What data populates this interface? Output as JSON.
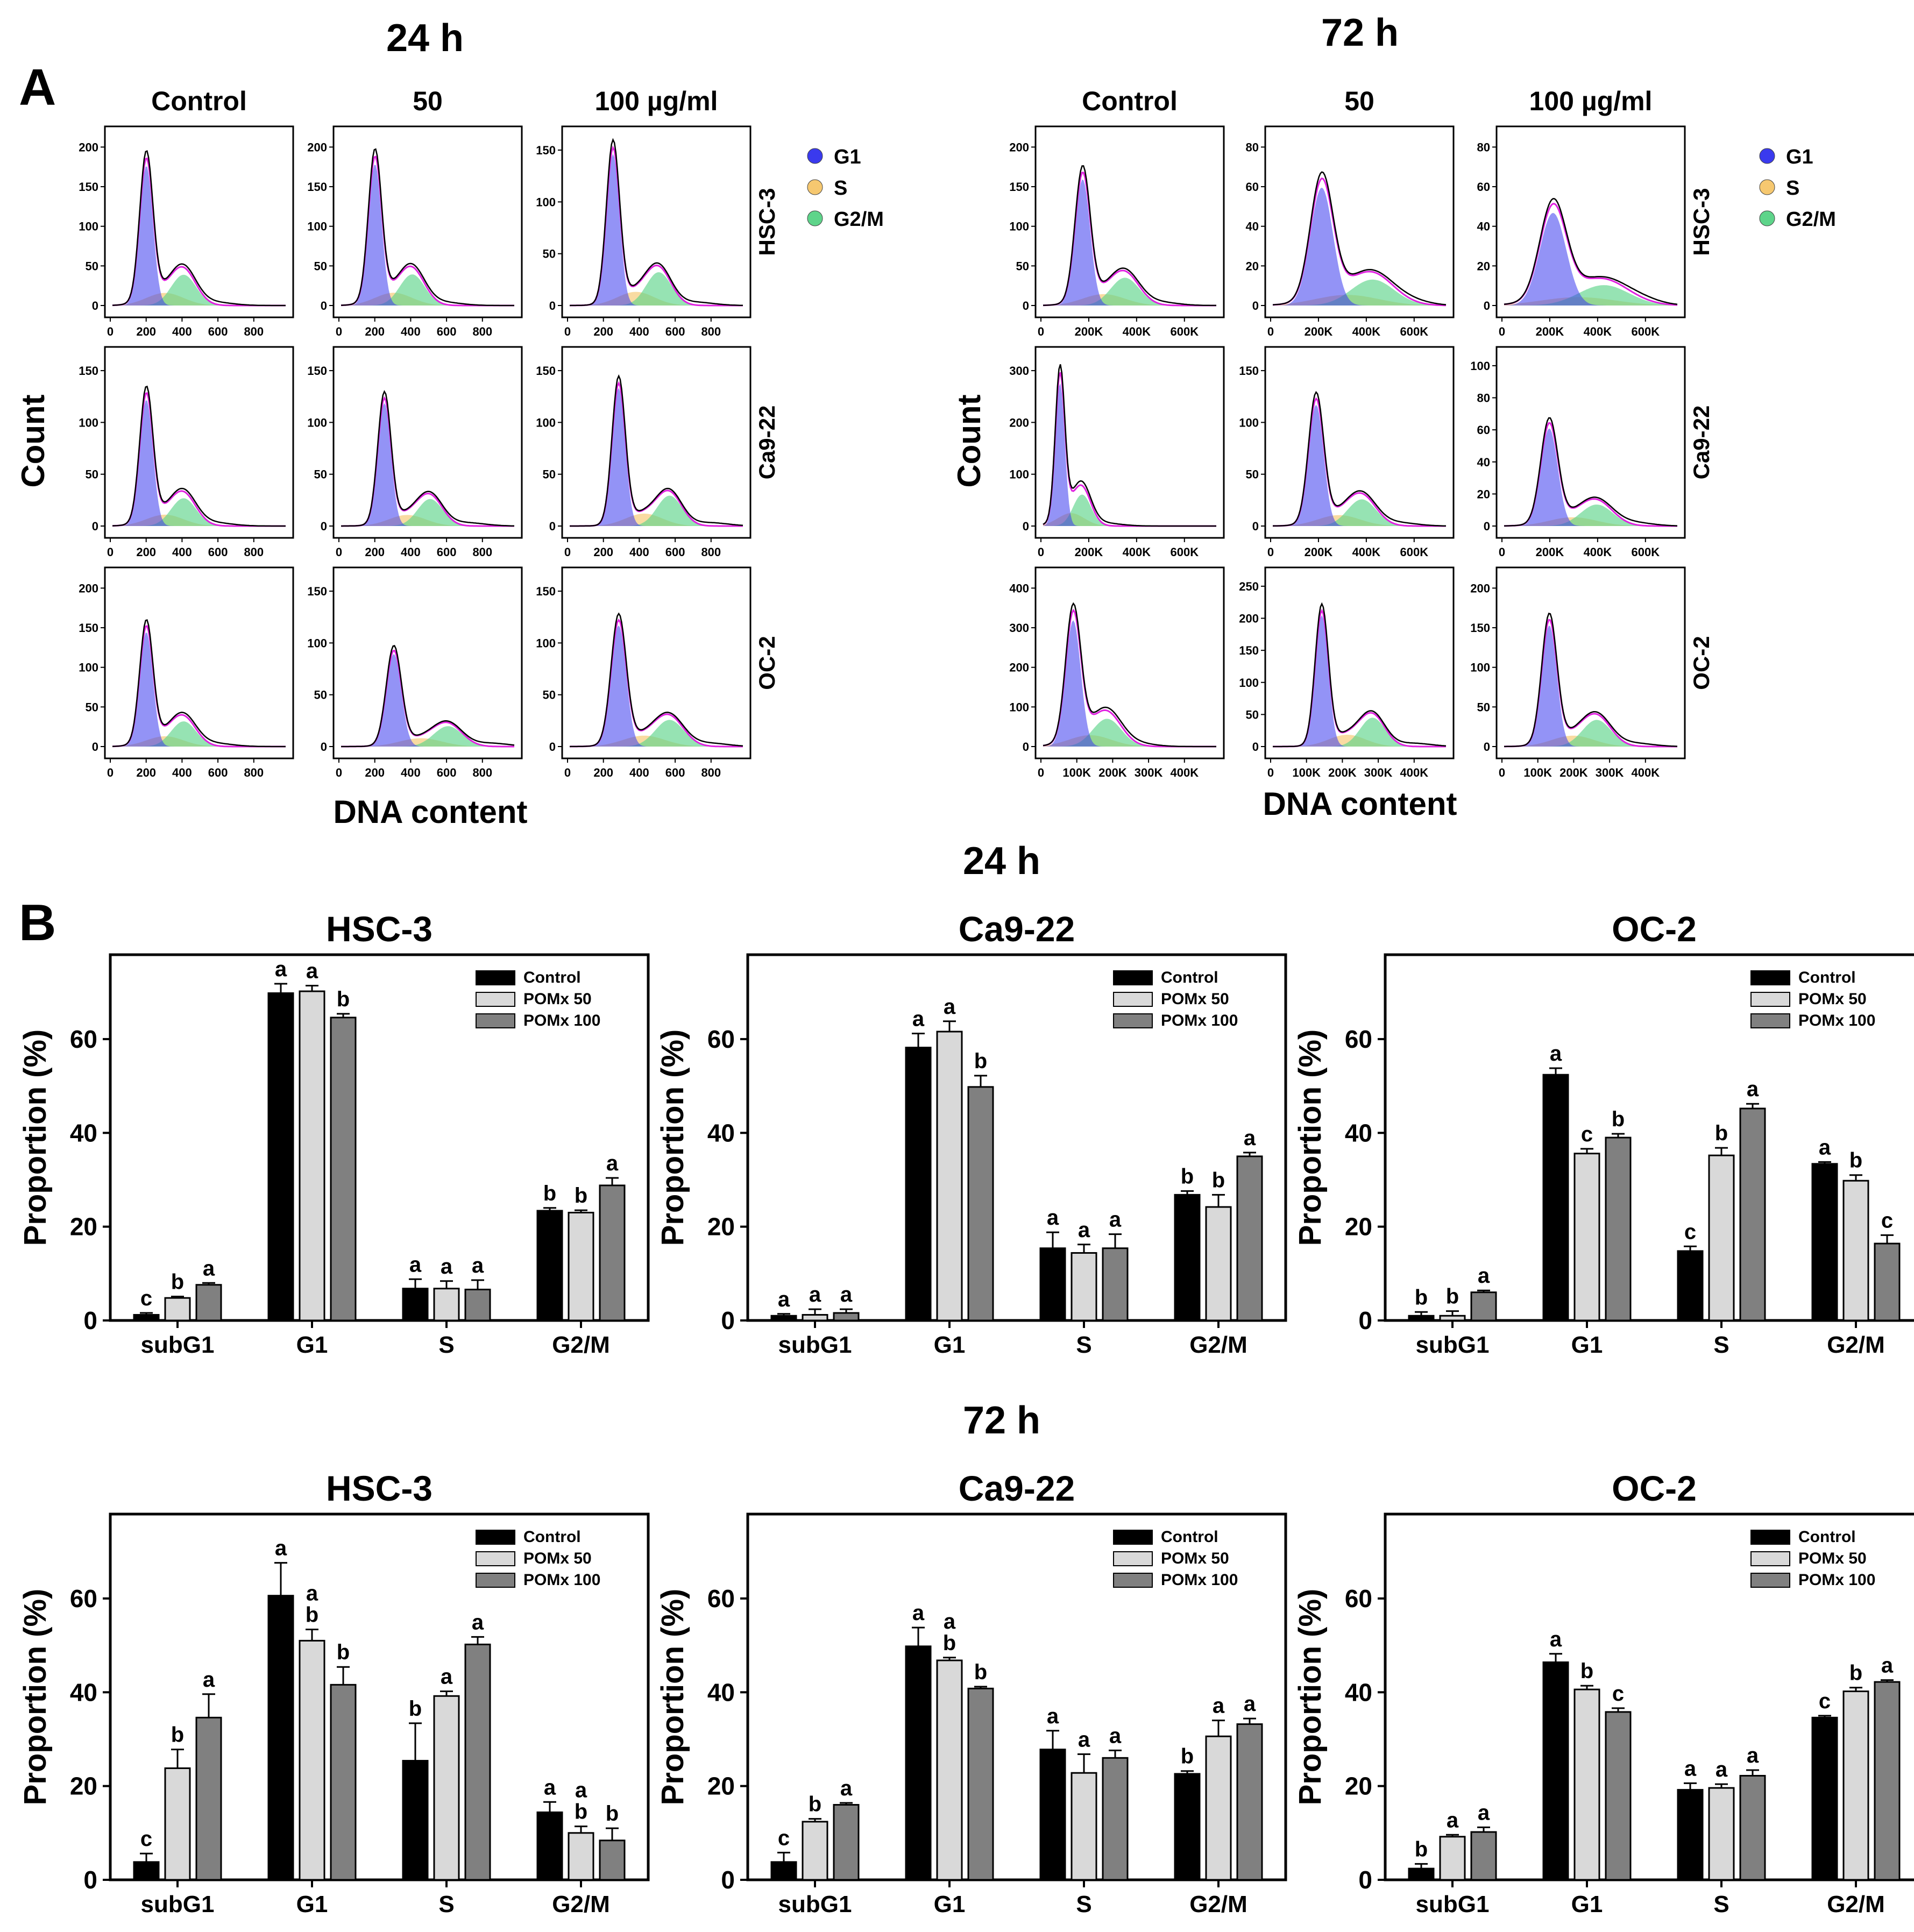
{
  "panel_letters": {
    "a": "A",
    "b": "B"
  },
  "section_a": {
    "time_24h": "24 h",
    "time_72h": "72 h",
    "columns": [
      "Control",
      "50",
      "100 µg/ml"
    ],
    "rows": [
      "HSC-3",
      "Ca9-22",
      "OC-2"
    ],
    "ylabel": "Count",
    "xlabel": "DNA content",
    "legend": [
      {
        "label": "G1",
        "color": "#3a3aee"
      },
      {
        "label": "S",
        "color": "#f6c870"
      },
      {
        "label": "G2/M",
        "color": "#5ed48a"
      }
    ],
    "x_ticks_24h": [
      "0",
      "200",
      "400",
      "600",
      "800"
    ],
    "x_ticks_72h": [
      [
        "0",
        "200K",
        "400K",
        "600K"
      ],
      [
        "0",
        "200K",
        "400K",
        "600K"
      ],
      [
        "0",
        "100K",
        "200K",
        "300K",
        "400K"
      ]
    ],
    "y_ticks": {
      "h24": [
        [
          [
            "0",
            "50",
            "100",
            "150",
            "200"
          ],
          [
            "0",
            "50",
            "100",
            "150",
            "200"
          ],
          [
            "0",
            "50",
            "100",
            "150"
          ]
        ],
        [
          [
            "0",
            "50",
            "100",
            "150"
          ],
          [
            "0",
            "50",
            "100",
            "150"
          ],
          [
            "0",
            "50",
            "100",
            "150"
          ]
        ],
        [
          [
            "0",
            "50",
            "100",
            "150",
            "200"
          ],
          [
            "0",
            "50",
            "100",
            "150"
          ],
          [
            "0",
            "50",
            "100",
            "150"
          ]
        ]
      ],
      "h72": [
        [
          [
            "0",
            "50",
            "100",
            "150",
            "200"
          ],
          [
            "0",
            "20",
            "40",
            "60",
            "80"
          ],
          [
            "0",
            "20",
            "40",
            "60",
            "80"
          ]
        ],
        [
          [
            "0",
            "100",
            "200",
            "300"
          ],
          [
            "0",
            "50",
            "100",
            "150"
          ],
          [
            "0",
            "20",
            "40",
            "60",
            "80",
            "100"
          ]
        ],
        [
          [
            "0",
            "100",
            "200",
            "300",
            "400"
          ],
          [
            "0",
            "50",
            "100",
            "150",
            "200",
            "250"
          ],
          [
            "0",
            "50",
            "100",
            "150",
            "200"
          ]
        ]
      ]
    },
    "colors": {
      "g1": "#3a3aee",
      "s": "#f6c870",
      "g2m": "#5ed48a",
      "fit": "#e020e0",
      "raw": "#000000"
    }
  },
  "section_b": {
    "time_24h": "24 h",
    "time_72h": "72 h",
    "ylabel": "Proportion (%)",
    "legend": [
      "Control",
      "POMx 50",
      "POMx 100"
    ],
    "series_colors": [
      "#000000",
      "#d9d9d9",
      "#808080"
    ]
  },
  "chart_data": [
    {
      "type": "bar",
      "title": "HSC-3",
      "subtitle": "24 h",
      "categories": [
        "subG1",
        "G1",
        "S",
        "G2/M"
      ],
      "ylabel": "Proportion (%)",
      "ylim": [
        0,
        78
      ],
      "yticks": [
        0,
        20,
        40,
        60
      ],
      "series": [
        {
          "name": "Control",
          "values": [
            1.2,
            69.8,
            6.8,
            23.4
          ],
          "errors": [
            0.4,
            2.0,
            2.0,
            0.6
          ],
          "letters": [
            "c",
            "a",
            "a",
            "b"
          ]
        },
        {
          "name": "POMx 50",
          "values": [
            4.8,
            70.2,
            6.8,
            23.0
          ],
          "errors": [
            0.3,
            1.2,
            1.6,
            0.5
          ],
          "letters": [
            "b",
            "a",
            "a",
            "b"
          ]
        },
        {
          "name": "POMx 100",
          "values": [
            7.6,
            64.6,
            6.6,
            28.8
          ],
          "errors": [
            0.4,
            0.8,
            2.0,
            1.6
          ],
          "letters": [
            "a",
            "b",
            "a",
            "a"
          ]
        }
      ]
    },
    {
      "type": "bar",
      "title": "Ca9-22",
      "subtitle": "24 h",
      "categories": [
        "subG1",
        "G1",
        "S",
        "G2/M"
      ],
      "ylabel": "Proportion (%)",
      "ylim": [
        0,
        78
      ],
      "yticks": [
        0,
        20,
        40,
        60
      ],
      "series": [
        {
          "name": "Control",
          "values": [
            1.0,
            58.2,
            15.4,
            26.8
          ],
          "errors": [
            0.4,
            3.0,
            3.4,
            0.8
          ],
          "letters": [
            "a",
            "a",
            "a",
            "b"
          ]
        },
        {
          "name": "POMx 50",
          "values": [
            1.2,
            61.6,
            14.4,
            24.2
          ],
          "errors": [
            1.2,
            2.2,
            1.8,
            2.6
          ],
          "letters": [
            "a",
            "a",
            "a",
            "b"
          ]
        },
        {
          "name": "POMx 100",
          "values": [
            1.6,
            49.8,
            15.4,
            35.0
          ],
          "errors": [
            0.8,
            2.4,
            3.0,
            0.8
          ],
          "letters": [
            "a",
            "b",
            "a",
            "a"
          ]
        }
      ]
    },
    {
      "type": "bar",
      "title": "OC-2",
      "subtitle": "24 h",
      "categories": [
        "subG1",
        "G1",
        "S",
        "G2/M"
      ],
      "ylabel": "Proportion (%)",
      "ylim": [
        0,
        78
      ],
      "yticks": [
        0,
        20,
        40,
        60
      ],
      "series": [
        {
          "name": "Control",
          "values": [
            1.0,
            52.4,
            14.8,
            33.4
          ],
          "errors": [
            0.8,
            1.4,
            1.0,
            0.4
          ],
          "letters": [
            "b",
            "a",
            "c",
            "a"
          ]
        },
        {
          "name": "POMx 50",
          "values": [
            1.0,
            35.6,
            35.2,
            29.8
          ],
          "errors": [
            1.0,
            1.0,
            1.6,
            1.2
          ],
          "letters": [
            "b",
            "c",
            "b",
            "b"
          ]
        },
        {
          "name": "POMx 100",
          "values": [
            6.0,
            39.0,
            45.2,
            16.4
          ],
          "errors": [
            0.4,
            0.8,
            1.0,
            1.8
          ],
          "letters": [
            "a",
            "b",
            "a",
            "c"
          ]
        }
      ]
    },
    {
      "type": "bar",
      "title": "HSC-3",
      "subtitle": "72 h",
      "categories": [
        "subG1",
        "G1",
        "S",
        "G2/M"
      ],
      "ylabel": "Proportion (%)",
      "ylim": [
        0,
        78
      ],
      "yticks": [
        0,
        20,
        40,
        60
      ],
      "series": [
        {
          "name": "Control",
          "values": [
            3.8,
            60.6,
            25.4,
            14.4
          ],
          "errors": [
            1.8,
            7.0,
            8.0,
            2.2
          ],
          "letters": [
            "c",
            "a",
            "b",
            "a"
          ]
        },
        {
          "name": "POMx 50",
          "values": [
            23.8,
            51.0,
            39.2,
            10.0
          ],
          "errors": [
            4.0,
            2.4,
            1.0,
            1.4
          ],
          "letters": [
            "b",
            "a\nb",
            "a",
            "a\nb"
          ]
        },
        {
          "name": "POMx 100",
          "values": [
            34.6,
            41.6,
            50.2,
            8.4
          ],
          "errors": [
            5.0,
            3.8,
            1.6,
            2.6
          ],
          "letters": [
            "a",
            "b",
            "a",
            "b"
          ]
        }
      ]
    },
    {
      "type": "bar",
      "title": "Ca9-22",
      "subtitle": "72 h",
      "categories": [
        "subG1",
        "G1",
        "S",
        "G2/M"
      ],
      "ylabel": "Proportion (%)",
      "ylim": [
        0,
        78
      ],
      "yticks": [
        0,
        20,
        40,
        60
      ],
      "series": [
        {
          "name": "Control",
          "values": [
            3.8,
            49.8,
            27.8,
            22.6
          ],
          "errors": [
            2.0,
            4.0,
            4.0,
            0.6
          ],
          "letters": [
            "c",
            "a",
            "a",
            "b"
          ]
        },
        {
          "name": "POMx 50",
          "values": [
            12.4,
            46.8,
            22.8,
            30.6
          ],
          "errors": [
            0.6,
            0.6,
            4.0,
            3.4
          ],
          "letters": [
            "b",
            "a\nb",
            "a",
            "a"
          ]
        },
        {
          "name": "POMx 100",
          "values": [
            16.0,
            40.8,
            26.0,
            33.2
          ],
          "errors": [
            0.4,
            0.4,
            1.6,
            1.2
          ],
          "letters": [
            "a",
            "b",
            "a",
            "a"
          ]
        }
      ]
    },
    {
      "type": "bar",
      "title": "OC-2",
      "subtitle": "72 h",
      "categories": [
        "subG1",
        "G1",
        "S",
        "G2/M"
      ],
      "ylabel": "Proportion (%)",
      "ylim": [
        0,
        78
      ],
      "yticks": [
        0,
        20,
        40,
        60
      ],
      "series": [
        {
          "name": "Control",
          "values": [
            2.4,
            46.4,
            19.2,
            34.6
          ],
          "errors": [
            1.0,
            1.8,
            1.4,
            0.4
          ],
          "letters": [
            "b",
            "a",
            "a",
            "c"
          ]
        },
        {
          "name": "POMx 50",
          "values": [
            9.2,
            40.6,
            19.6,
            40.2
          ],
          "errors": [
            0.4,
            0.8,
            0.8,
            0.8
          ],
          "letters": [
            "a",
            "b",
            "a",
            "b"
          ]
        },
        {
          "name": "POMx 100",
          "values": [
            10.2,
            35.8,
            22.2,
            42.2
          ],
          "errors": [
            1.0,
            0.8,
            1.2,
            0.4
          ],
          "letters": [
            "a",
            "c",
            "a",
            "a"
          ]
        }
      ]
    }
  ]
}
